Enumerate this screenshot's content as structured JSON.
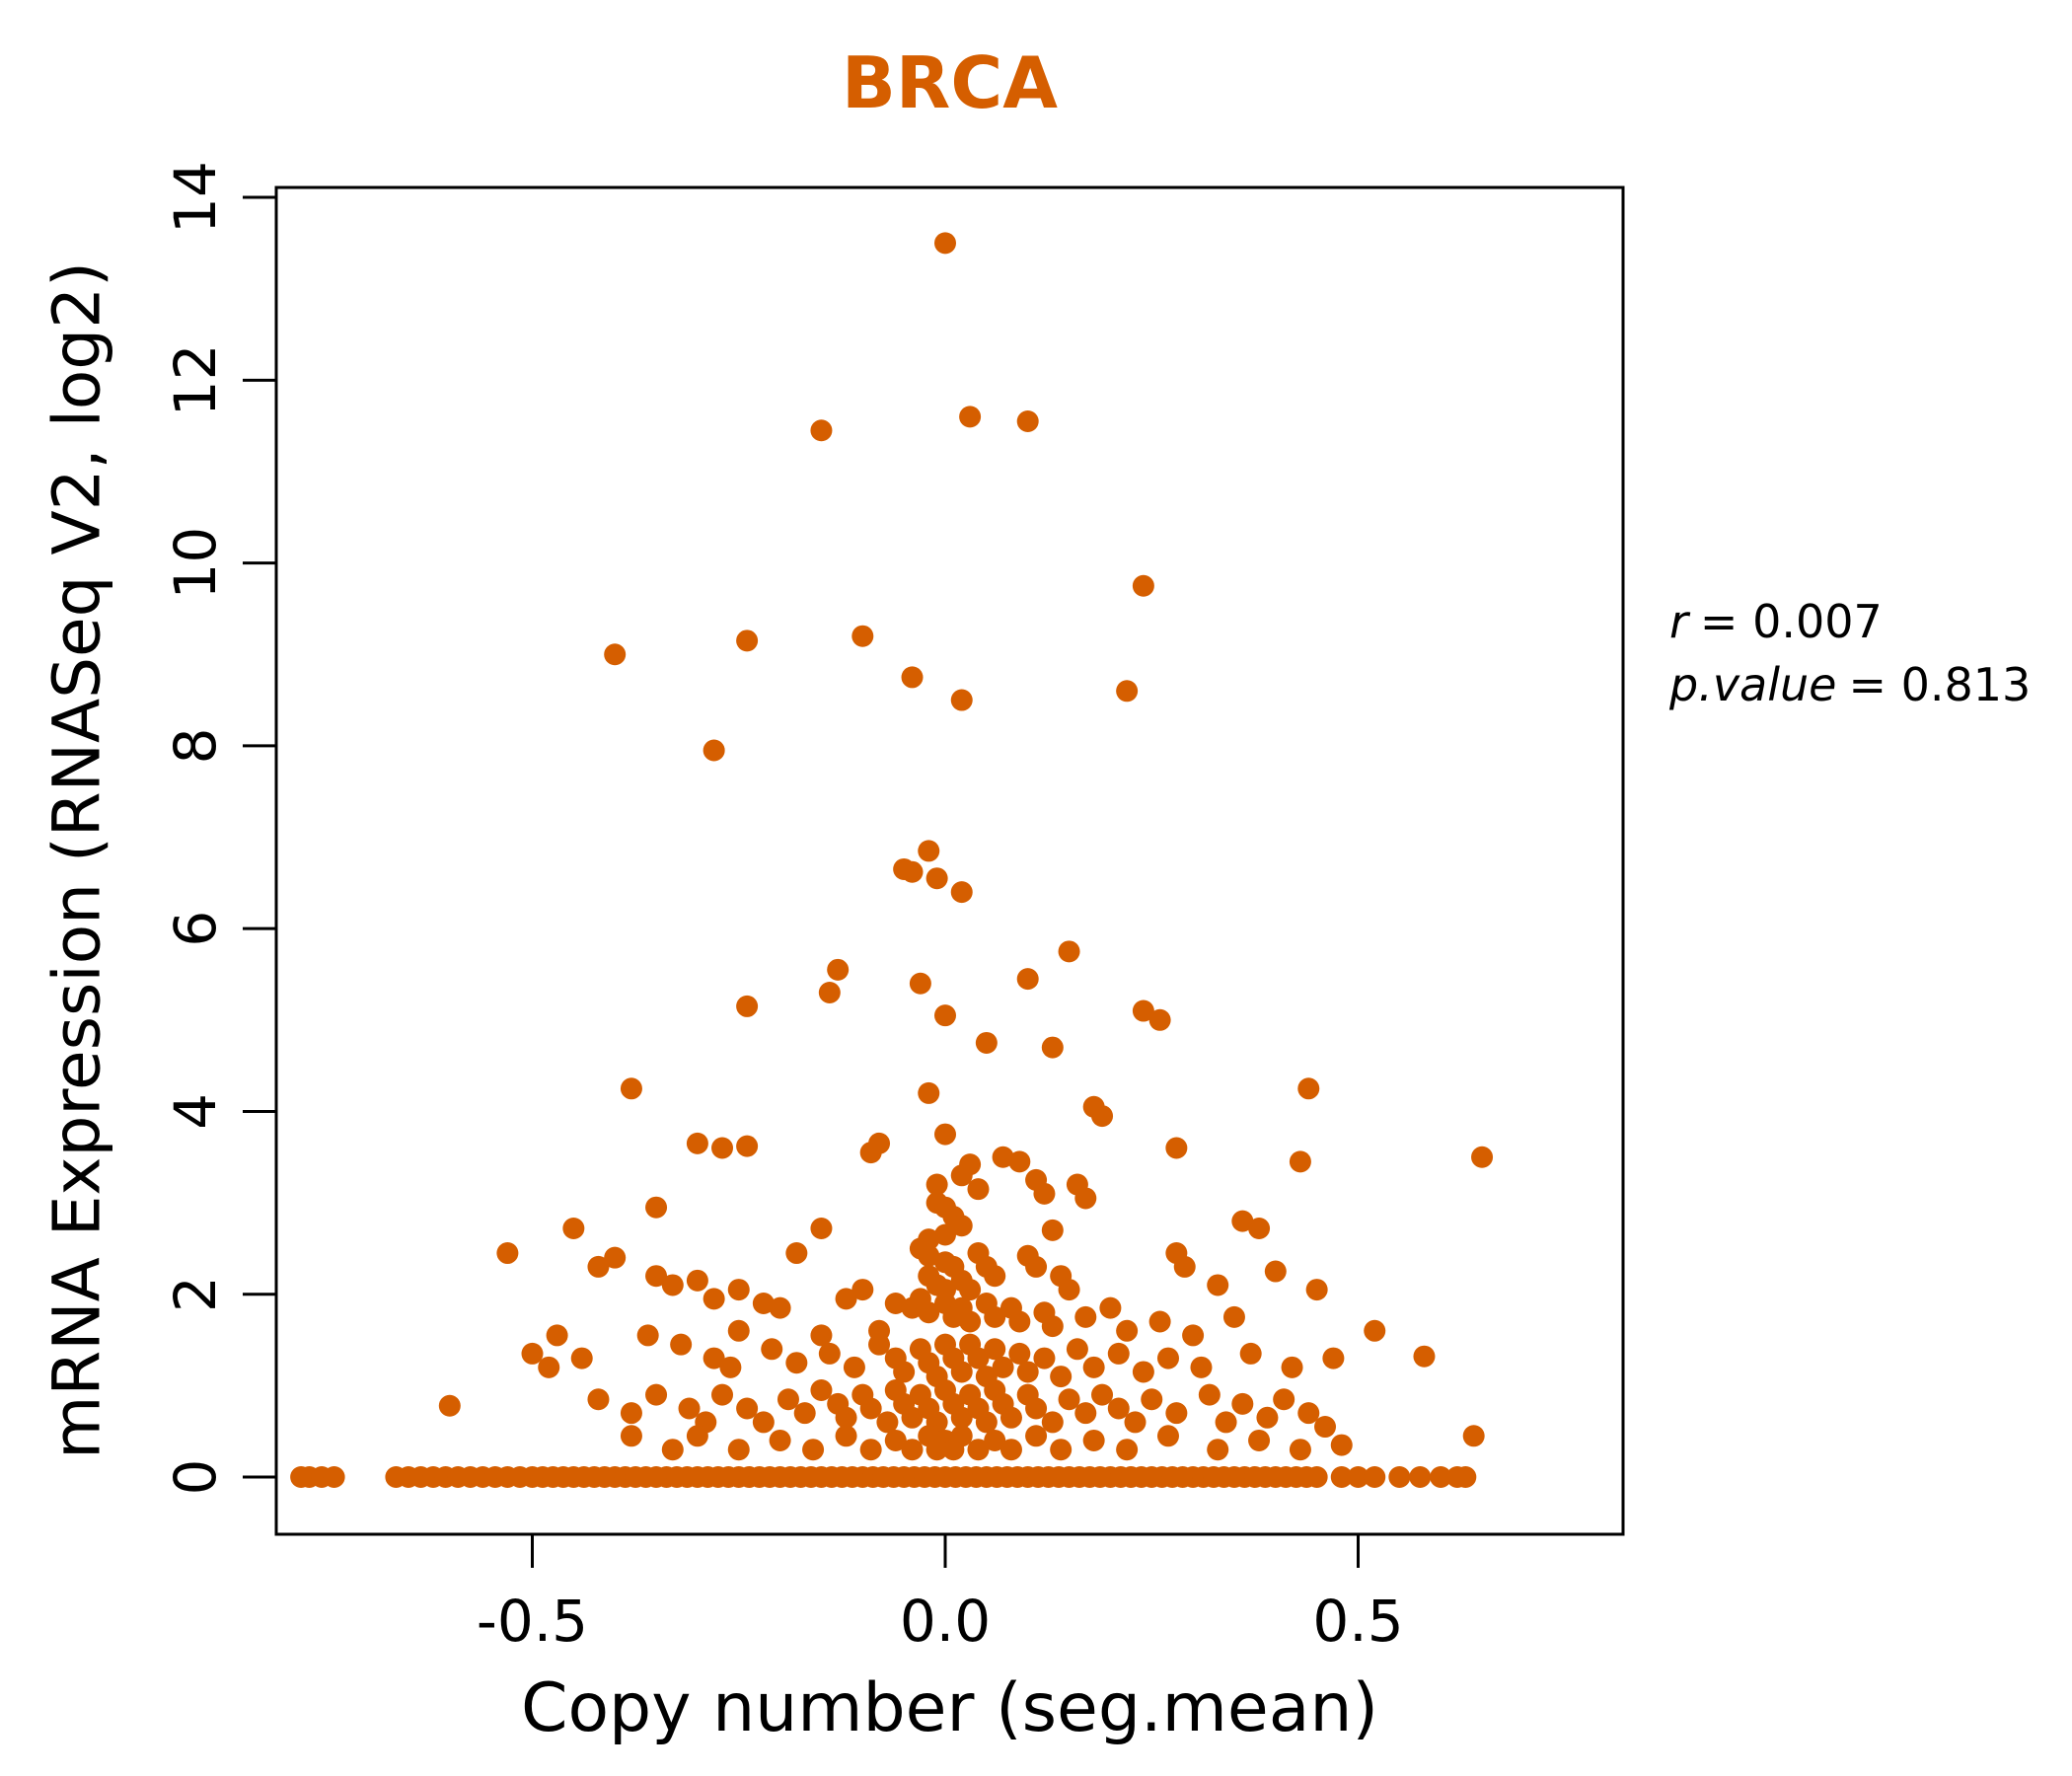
{
  "chart_data": {
    "type": "scatter",
    "title": "BRCA",
    "title_color": "#D55E00",
    "point_color": "#D55E00",
    "xlabel": "Copy number (seg.mean)",
    "ylabel": "mRNA Expression (RNASeq V2, log2)",
    "xlim": [
      -0.81,
      0.82
    ],
    "ylim": [
      0,
      14
    ],
    "grid": false,
    "x_ticks": [
      {
        "v": -0.5,
        "label": "-0.5"
      },
      {
        "v": 0.0,
        "label": "0.0"
      },
      {
        "v": 0.5,
        "label": "0.5"
      }
    ],
    "y_ticks": [
      {
        "v": 0,
        "label": "0"
      },
      {
        "v": 2,
        "label": "2"
      },
      {
        "v": 4,
        "label": "4"
      },
      {
        "v": 6,
        "label": "6"
      },
      {
        "v": 8,
        "label": "8"
      },
      {
        "v": 10,
        "label": "10"
      },
      {
        "v": 12,
        "label": "12"
      },
      {
        "v": 14,
        "label": "14"
      }
    ],
    "annotations": [
      {
        "lhs": "r",
        "rhs": "= 0.007"
      },
      {
        "lhs": "p.value",
        "rhs": "= 0.813"
      }
    ],
    "points": [
      [
        0,
        13.5
      ],
      [
        -0.15,
        11.45
      ],
      [
        0.03,
        11.6
      ],
      [
        0.1,
        11.55
      ],
      [
        0.24,
        9.75
      ],
      [
        -0.1,
        9.2
      ],
      [
        -0.24,
        9.15
      ],
      [
        -0.4,
        9.0
      ],
      [
        -0.04,
        8.75
      ],
      [
        0.02,
        8.5
      ],
      [
        0.22,
        8.6
      ],
      [
        -0.28,
        7.95
      ],
      [
        -0.02,
        6.85
      ],
      [
        -0.05,
        6.65
      ],
      [
        -0.01,
        6.55
      ],
      [
        0.02,
        6.4
      ],
      [
        -0.04,
        6.62
      ],
      [
        0.15,
        5.75
      ],
      [
        -0.13,
        5.55
      ],
      [
        -0.14,
        5.3
      ],
      [
        0.1,
        5.45
      ],
      [
        -0.03,
        5.4
      ],
      [
        -0.24,
        5.15
      ],
      [
        0.24,
        5.1
      ],
      [
        0.26,
        5.0
      ],
      [
        0,
        5.05
      ],
      [
        0.05,
        4.75
      ],
      [
        0.13,
        4.7
      ],
      [
        -0.38,
        4.25
      ],
      [
        0.44,
        4.25
      ],
      [
        -0.02,
        4.2
      ],
      [
        0.18,
        4.05
      ],
      [
        0.19,
        3.95
      ],
      [
        0,
        3.75
      ],
      [
        -0.08,
        3.65
      ],
      [
        -0.3,
        3.65
      ],
      [
        -0.27,
        3.6
      ],
      [
        -0.24,
        3.62
      ],
      [
        0.28,
        3.6
      ],
      [
        -0.09,
        3.55
      ],
      [
        0.65,
        3.5
      ],
      [
        0.43,
        3.45
      ],
      [
        0.03,
        3.42
      ],
      [
        0.02,
        3.3
      ],
      [
        0.07,
        3.5
      ],
      [
        0.09,
        3.45
      ],
      [
        -0.01,
        3.2
      ],
      [
        0.04,
        3.15
      ],
      [
        0.11,
        3.25
      ],
      [
        0.12,
        3.1
      ],
      [
        0.16,
        3.2
      ],
      [
        0.17,
        3.05
      ],
      [
        -0.01,
        3.0
      ],
      [
        0,
        2.95
      ],
      [
        -0.35,
        2.95
      ],
      [
        0.01,
        2.85
      ],
      [
        0.02,
        2.75
      ],
      [
        -0.45,
        2.72
      ],
      [
        -0.15,
        2.72
      ],
      [
        0.36,
        2.8
      ],
      [
        0.38,
        2.72
      ],
      [
        0.13,
        2.7
      ],
      [
        0,
        2.65
      ],
      [
        -0.02,
        2.6
      ],
      [
        -0.53,
        2.45
      ],
      [
        -0.4,
        2.4
      ],
      [
        -0.42,
        2.3
      ],
      [
        -0.18,
        2.45
      ],
      [
        -0.03,
        2.5
      ],
      [
        -0.02,
        2.42
      ],
      [
        0,
        2.35
      ],
      [
        0.01,
        2.3
      ],
      [
        0.04,
        2.45
      ],
      [
        0.05,
        2.3
      ],
      [
        0.06,
        2.2
      ],
      [
        0.28,
        2.45
      ],
      [
        0.29,
        2.3
      ],
      [
        0.4,
        2.25
      ],
      [
        0.1,
        2.42
      ],
      [
        0.11,
        2.3
      ],
      [
        -0.35,
        2.2
      ],
      [
        -0.33,
        2.1
      ],
      [
        -0.3,
        2.15
      ],
      [
        -0.02,
        2.2
      ],
      [
        -0.01,
        2.1
      ],
      [
        0,
        2.05
      ],
      [
        0.02,
        2.15
      ],
      [
        0.03,
        2.05
      ],
      [
        0.14,
        2.2
      ],
      [
        0.15,
        2.05
      ],
      [
        0.33,
        2.1
      ],
      [
        -0.25,
        2.05
      ],
      [
        -0.1,
        2.05
      ],
      [
        0.45,
        2.05
      ],
      [
        -0.28,
        1.95
      ],
      [
        -0.22,
        1.9
      ],
      [
        -0.2,
        1.85
      ],
      [
        -0.12,
        1.95
      ],
      [
        -0.06,
        1.9
      ],
      [
        -0.04,
        1.85
      ],
      [
        -0.03,
        1.95
      ],
      [
        -0.02,
        1.8
      ],
      [
        0,
        1.9
      ],
      [
        0.01,
        1.75
      ],
      [
        0.02,
        1.85
      ],
      [
        0.03,
        1.7
      ],
      [
        0.05,
        1.9
      ],
      [
        0.06,
        1.75
      ],
      [
        0.08,
        1.85
      ],
      [
        0.09,
        1.7
      ],
      [
        0.12,
        1.8
      ],
      [
        0.13,
        1.65
      ],
      [
        0.17,
        1.75
      ],
      [
        0.2,
        1.85
      ],
      [
        0.22,
        1.6
      ],
      [
        0.26,
        1.7
      ],
      [
        -0.47,
        1.55
      ],
      [
        -0.36,
        1.55
      ],
      [
        -0.25,
        1.6
      ],
      [
        -0.15,
        1.55
      ],
      [
        -0.08,
        1.6
      ],
      [
        0.3,
        1.55
      ],
      [
        0.35,
        1.75
      ],
      [
        0.52,
        1.6
      ],
      [
        -0.5,
        1.35
      ],
      [
        -0.48,
        1.2
      ],
      [
        -0.44,
        1.3
      ],
      [
        -0.32,
        1.45
      ],
      [
        -0.28,
        1.3
      ],
      [
        -0.26,
        1.2
      ],
      [
        -0.21,
        1.4
      ],
      [
        -0.18,
        1.25
      ],
      [
        -0.14,
        1.35
      ],
      [
        -0.11,
        1.2
      ],
      [
        -0.08,
        1.45
      ],
      [
        -0.06,
        1.3
      ],
      [
        -0.05,
        1.15
      ],
      [
        -0.03,
        1.4
      ],
      [
        -0.02,
        1.25
      ],
      [
        -0.01,
        1.1
      ],
      [
        0,
        1.45
      ],
      [
        0.01,
        1.3
      ],
      [
        0.02,
        1.15
      ],
      [
        0.03,
        1.45
      ],
      [
        0.04,
        1.3
      ],
      [
        0.05,
        1.1
      ],
      [
        0.06,
        1.4
      ],
      [
        0.07,
        1.2
      ],
      [
        0.09,
        1.35
      ],
      [
        0.1,
        1.15
      ],
      [
        0.12,
        1.3
      ],
      [
        0.14,
        1.1
      ],
      [
        0.16,
        1.4
      ],
      [
        0.18,
        1.2
      ],
      [
        0.21,
        1.35
      ],
      [
        0.24,
        1.15
      ],
      [
        0.27,
        1.3
      ],
      [
        0.31,
        1.2
      ],
      [
        0.37,
        1.35
      ],
      [
        0.42,
        1.2
      ],
      [
        0.47,
        1.3
      ],
      [
        0.58,
        1.32
      ],
      [
        -0.6,
        0.78
      ],
      [
        -0.42,
        0.85
      ],
      [
        -0.38,
        0.7
      ],
      [
        -0.35,
        0.9
      ],
      [
        -0.31,
        0.75
      ],
      [
        -0.29,
        0.6
      ],
      [
        -0.27,
        0.9
      ],
      [
        -0.24,
        0.75
      ],
      [
        -0.22,
        0.6
      ],
      [
        -0.19,
        0.85
      ],
      [
        -0.17,
        0.7
      ],
      [
        -0.15,
        0.95
      ],
      [
        -0.13,
        0.8
      ],
      [
        -0.12,
        0.65
      ],
      [
        -0.1,
        0.9
      ],
      [
        -0.09,
        0.75
      ],
      [
        -0.07,
        0.6
      ],
      [
        -0.06,
        0.95
      ],
      [
        -0.05,
        0.8
      ],
      [
        -0.04,
        0.65
      ],
      [
        -0.03,
        0.9
      ],
      [
        -0.02,
        0.75
      ],
      [
        -0.01,
        0.6
      ],
      [
        0,
        0.95
      ],
      [
        0.01,
        0.8
      ],
      [
        0.02,
        0.65
      ],
      [
        0.03,
        0.9
      ],
      [
        0.04,
        0.75
      ],
      [
        0.05,
        0.6
      ],
      [
        0.06,
        0.95
      ],
      [
        0.07,
        0.8
      ],
      [
        0.08,
        0.65
      ],
      [
        0.1,
        0.9
      ],
      [
        0.11,
        0.75
      ],
      [
        0.13,
        0.6
      ],
      [
        0.15,
        0.85
      ],
      [
        0.17,
        0.7
      ],
      [
        0.19,
        0.9
      ],
      [
        0.21,
        0.75
      ],
      [
        0.23,
        0.6
      ],
      [
        0.25,
        0.85
      ],
      [
        0.28,
        0.7
      ],
      [
        0.32,
        0.9
      ],
      [
        0.34,
        0.6
      ],
      [
        0.36,
        0.8
      ],
      [
        0.39,
        0.65
      ],
      [
        0.41,
        0.85
      ],
      [
        0.44,
        0.7
      ],
      [
        0.46,
        0.55
      ],
      [
        0.64,
        0.45
      ],
      [
        -0.38,
        0.45
      ],
      [
        -0.33,
        0.3
      ],
      [
        -0.3,
        0.45
      ],
      [
        -0.25,
        0.3
      ],
      [
        -0.2,
        0.4
      ],
      [
        -0.16,
        0.3
      ],
      [
        -0.12,
        0.45
      ],
      [
        -0.09,
        0.3
      ],
      [
        -0.06,
        0.4
      ],
      [
        -0.04,
        0.3
      ],
      [
        -0.02,
        0.45
      ],
      [
        -0.01,
        0.3
      ],
      [
        0,
        0.4
      ],
      [
        0.01,
        0.3
      ],
      [
        0.02,
        0.45
      ],
      [
        0.04,
        0.3
      ],
      [
        0.06,
        0.4
      ],
      [
        0.08,
        0.3
      ],
      [
        0.11,
        0.45
      ],
      [
        0.14,
        0.3
      ],
      [
        0.18,
        0.4
      ],
      [
        0.22,
        0.3
      ],
      [
        0.27,
        0.45
      ],
      [
        0.33,
        0.3
      ],
      [
        0.38,
        0.4
      ],
      [
        0.43,
        0.3
      ],
      [
        0.48,
        0.35
      ]
    ],
    "baseline": {
      "y": 0,
      "runs": [
        {
          "from": -0.5,
          "to": 0.45,
          "step": 0.0125
        },
        {
          "from": -0.665,
          "to": -0.515,
          "step": 0.015
        }
      ],
      "singles": [
        -0.78,
        -0.77,
        -0.755,
        -0.74,
        0.48,
        0.5,
        0.52,
        0.55,
        0.575,
        0.6,
        0.62,
        0.63
      ]
    }
  }
}
